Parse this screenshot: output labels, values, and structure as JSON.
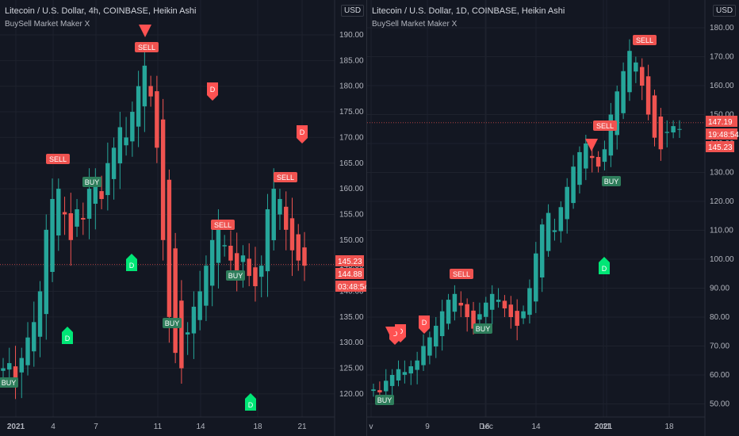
{
  "left": {
    "title": "Litecoin / U.S. Dollar, 4h, COINBASE, Heikin Ashi",
    "indicator": "BuySell Market Maker X",
    "currency": "USD",
    "price_ticks": [
      "190.00",
      "185.00",
      "180.00",
      "175.00",
      "170.00",
      "165.00",
      "160.00",
      "155.00",
      "150.00",
      "145.00",
      "140.00",
      "135.00",
      "130.00",
      "125.00",
      "120.00"
    ],
    "time_ticks": [
      "2021",
      "4",
      "7",
      "11",
      "14",
      "18",
      "21"
    ],
    "price_tags": [
      "145.23",
      "144.88",
      "03:48:54"
    ],
    "signals": [
      "SELL",
      "SELL",
      "SELL",
      "SELL",
      "BUY",
      "BUY",
      "BUY",
      "BUY",
      "D",
      "D",
      "D",
      "D",
      "D"
    ]
  },
  "right": {
    "title": "Litecoin / U.S. Dollar, 1D, COINBASE, Heikin Ashi",
    "indicator": "BuySell Market Maker X",
    "currency": "USD",
    "price_ticks": [
      "180.00",
      "170.00",
      "160.00",
      "150.00",
      "140.00",
      "130.00",
      "120.00",
      "110.00",
      "100.00",
      "90.00",
      "80.00",
      "70.00",
      "60.00",
      "50.00"
    ],
    "time_ticks": [
      "v",
      "9",
      "16",
      "Dec",
      "14",
      "2021",
      "11",
      "18"
    ],
    "price_tags": [
      "147.19",
      "19:48:54",
      "145.23"
    ],
    "signals": [
      "SELL",
      "SELL",
      "SELL",
      "BUY",
      "BUY",
      "BUY",
      "D",
      "D",
      "D",
      "D"
    ]
  },
  "colors": {
    "background": "#131722",
    "up": "#26a69a",
    "down": "#ef5350",
    "buy": "#00e676",
    "sell": "#ff5252"
  },
  "chart_data": [
    {
      "type": "candlestick",
      "title": "Litecoin / U.S. Dollar, 4h, COINBASE, Heikin Ashi",
      "ylim": [
        116,
        194
      ],
      "x_ticks": [
        "2021",
        "4",
        "7",
        "11",
        "14",
        "18",
        "21"
      ],
      "close": [
        125,
        126,
        123,
        127,
        131,
        134,
        140,
        152,
        158,
        160,
        155,
        150,
        156,
        154,
        160,
        162,
        158,
        165,
        168,
        172,
        170,
        175,
        180,
        184,
        178,
        168,
        150,
        135,
        128,
        125,
        132,
        137,
        140,
        145,
        150,
        152,
        149,
        146,
        144,
        147,
        143,
        141,
        145,
        156,
        160,
        158,
        152,
        148,
        146,
        145
      ]
    },
    {
      "type": "candlestick",
      "title": "Litecoin / U.S. Dollar, 1D, COINBASE, Heikin Ashi",
      "ylim": [
        45,
        186
      ],
      "x_ticks": [
        "v",
        "9",
        "16",
        "Dec",
        "14",
        "2021",
        "11",
        "18"
      ],
      "close": [
        55,
        54,
        58,
        60,
        62,
        61,
        63,
        65,
        70,
        73,
        77,
        82,
        86,
        88,
        84,
        80,
        76,
        81,
        85,
        88,
        86,
        83,
        80,
        77,
        82,
        90,
        102,
        112,
        116,
        110,
        118,
        125,
        132,
        137,
        140,
        135,
        132,
        138,
        150,
        158,
        165,
        172,
        168,
        160,
        150,
        142,
        138,
        144,
        146,
        145
      ]
    }
  ]
}
